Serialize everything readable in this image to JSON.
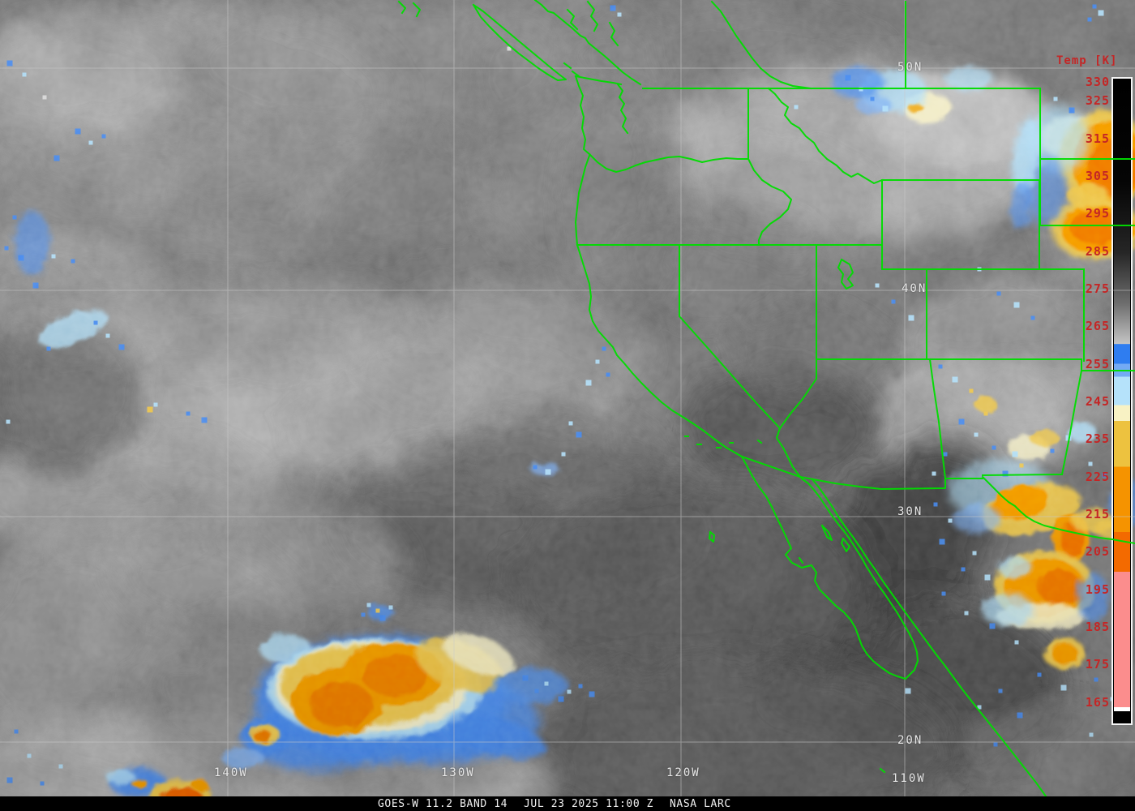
{
  "colorbar": {
    "title": "Temp [K]",
    "tick_labels": [
      "330",
      "325",
      "315",
      "305",
      "295",
      "285",
      "275",
      "265",
      "255",
      "245",
      "235",
      "225",
      "215",
      "205",
      "195",
      "185",
      "175",
      "165"
    ],
    "palette": {
      "gray_warm": "#000000",
      "gray_cold": "#c4c4c4",
      "blue": "#2f7df0",
      "light_blue": "#74aaf4",
      "pale_cyan": "#b5e2fa",
      "pale_yellow": "#f8f2c4",
      "gold": "#edc23f",
      "orange": "#f59300",
      "deep_orange": "#f36a00",
      "salmon": "#fb8d8d"
    }
  },
  "graticule": {
    "latitude_labels": [
      "50N",
      "40N",
      "30N",
      "20N"
    ],
    "longitude_labels": [
      "140W",
      "130W",
      "120W",
      "110W"
    ]
  },
  "caption": {
    "product": "GOES-W 11.2 BAND 14",
    "timestamp": "JUL 23 2025 11:00 Z",
    "credit": "NASA LARC"
  },
  "colors": {
    "border_green": "#00dd00",
    "grid_gray": "#c8c8c8",
    "tick_red": "#c42626",
    "label_white": "#e8e8e8",
    "caption_text": "#f0f0f0",
    "caption_bg": "#000000"
  }
}
